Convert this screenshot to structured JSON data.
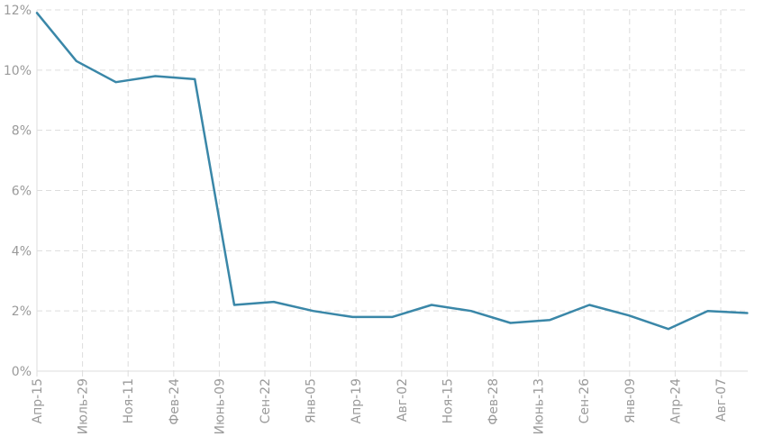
{
  "chart_data": {
    "type": "line",
    "title": "",
    "xlabel": "",
    "ylabel": "",
    "grid": true,
    "legend": "none",
    "y_unit": "%",
    "ylim": [
      0,
      12
    ],
    "yticks": [
      0,
      2,
      4,
      6,
      8,
      10,
      12
    ],
    "ytick_labels": [
      "0%",
      "2%",
      "4%",
      "6%",
      "8%",
      "10%",
      "12%"
    ],
    "xtick_labels": [
      "Апр-15",
      "Июль-29",
      "Ноя-11",
      "Фев-24",
      "Июнь-09",
      "Сен-22",
      "Янв-05",
      "Апр-19",
      "Авг-02",
      "Ноя-15",
      "Фев-28",
      "Июнь-13",
      "Сен-26",
      "Янв-09",
      "Апр-24",
      "Авг-07"
    ],
    "x": [
      "Апр-15",
      "Июль-29",
      "Ноя-11",
      "Фев-24",
      "",
      "Июнь-09",
      "Сен-22",
      "Янв-05",
      "Апр-19",
      "Авг-02",
      "Ноя-15",
      "Фев-28",
      "",
      "Июнь-13",
      "Сен-26",
      "Янв-09",
      "Апр-24",
      "Авг-07",
      ""
    ],
    "series": [
      {
        "name": "",
        "color": "#3a87a8",
        "values": [
          11.9,
          10.3,
          9.6,
          9.8,
          9.7,
          2.2,
          2.3,
          2.0,
          1.8,
          1.8,
          2.2,
          2.0,
          1.6,
          1.7,
          2.2,
          1.85,
          1.4,
          2.0,
          1.93
        ]
      }
    ]
  }
}
